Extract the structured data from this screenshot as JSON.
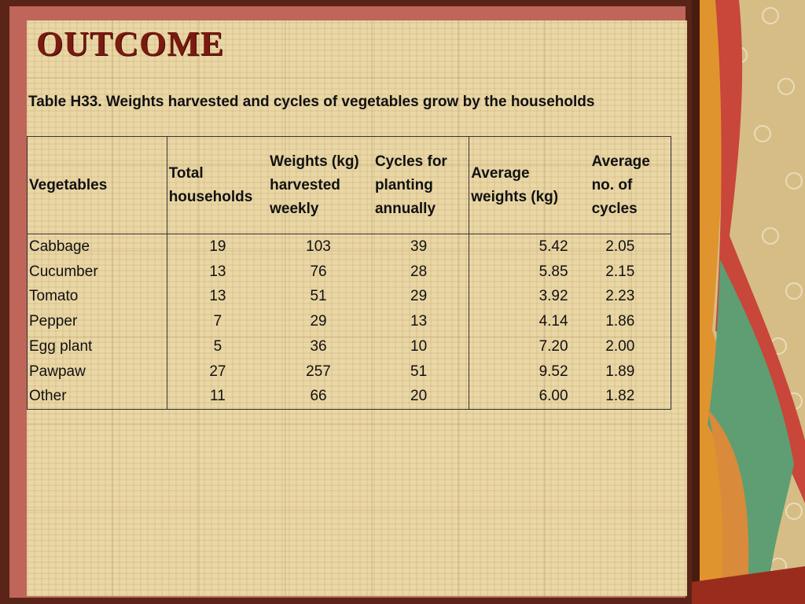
{
  "slide": {
    "title": "OUTCOME",
    "caption": "Table H33. Weights harvested  and cycles of vegetables grow by the households"
  },
  "table": {
    "headers": [
      "Vegetables",
      "Total households",
      "Weights (kg) harvested weekly",
      "Cycles for planting annually",
      "Average weights (kg)",
      "Average no. of cycles"
    ],
    "rows": [
      [
        "Cabbage",
        "19",
        "103",
        "39",
        "5.42",
        "2.05"
      ],
      [
        "Cucumber",
        "13",
        "76",
        "28",
        "5.85",
        "2.15"
      ],
      [
        "Tomato",
        "13",
        "51",
        "29",
        "3.92",
        "2.23"
      ],
      [
        "Pepper",
        "7",
        "29",
        "13",
        "4.14",
        "1.86"
      ],
      [
        "Egg plant",
        "5",
        "36",
        "10",
        "7.20",
        "2.00"
      ],
      [
        "Pawpaw",
        "27",
        "257",
        "51",
        "9.52",
        "1.89"
      ],
      [
        "Other",
        "11",
        "66",
        "20",
        "6.00",
        "1.82"
      ]
    ]
  },
  "colors": {
    "title": "#7a1a10",
    "paper": "#ead7a6",
    "frame": "#c0655a"
  }
}
